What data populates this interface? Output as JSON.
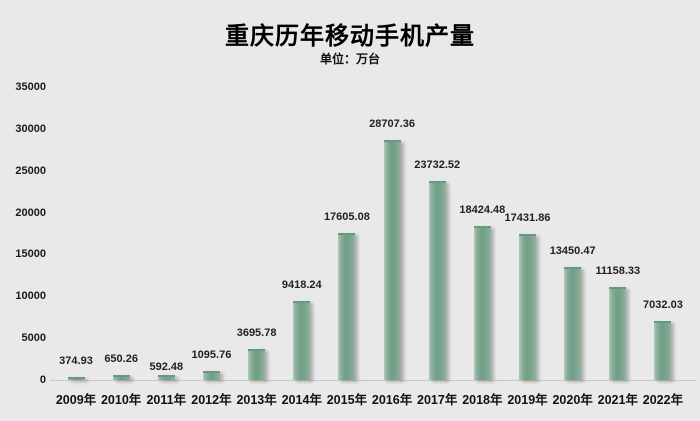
{
  "chart": {
    "title": "重庆历年移动手机产量",
    "subtitle": "单位：万台"
  },
  "chart_data": {
    "type": "bar",
    "title": "重庆历年移动手机产量",
    "subtitle": "单位：万台",
    "categories": [
      "2009年",
      "2010年",
      "2011年",
      "2012年",
      "2013年",
      "2014年",
      "2015年",
      "2016年",
      "2017年",
      "2018年",
      "2019年",
      "2020年",
      "2021年",
      "2022年"
    ],
    "values": [
      374.93,
      650.26,
      592.48,
      1095.76,
      3695.78,
      9418.24,
      17605.08,
      28707.36,
      23732.52,
      18424.48,
      17431.86,
      13450.47,
      11158.33,
      7032.03
    ],
    "value_label_decimals": 2,
    "xlabel": "",
    "ylabel": "",
    "ylim": [
      0,
      35000
    ],
    "yticks": [
      0,
      5000,
      10000,
      15000,
      20000,
      25000,
      30000,
      35000
    ],
    "grid": false,
    "legend": "none",
    "bar_color": "#7aa58e",
    "background_color": "#e9e9e9",
    "label_color": "#1f1f1f"
  }
}
